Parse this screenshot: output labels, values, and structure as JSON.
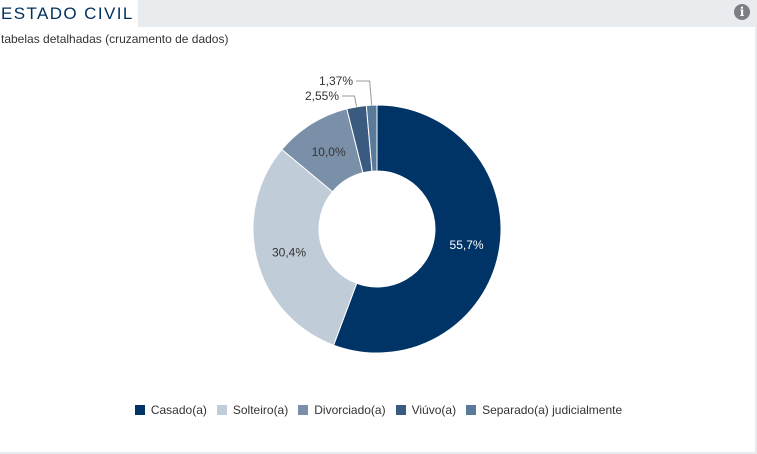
{
  "header": {
    "title": "ESTADO CIVIL",
    "info_icon": "info-icon"
  },
  "subtitle": "tabelas detalhadas (cruzamento de dados)",
  "chart_data": {
    "type": "pie",
    "variant": "donut",
    "categories": [
      "Casado(a)",
      "Solteiro(a)",
      "Divorciado(a)",
      "Viúvo(a)",
      "Separado(a) judicialmente"
    ],
    "values": [
      55.7,
      30.4,
      10.0,
      2.55,
      1.37
    ],
    "labels": [
      "55,7%",
      "30,4%",
      "10,0%",
      "2,55%",
      "1,37%"
    ],
    "colors": [
      "#003366",
      "#c0ccd8",
      "#7a90a8",
      "#3b5a7f",
      "#5a7a9a"
    ],
    "legend_position": "bottom"
  }
}
